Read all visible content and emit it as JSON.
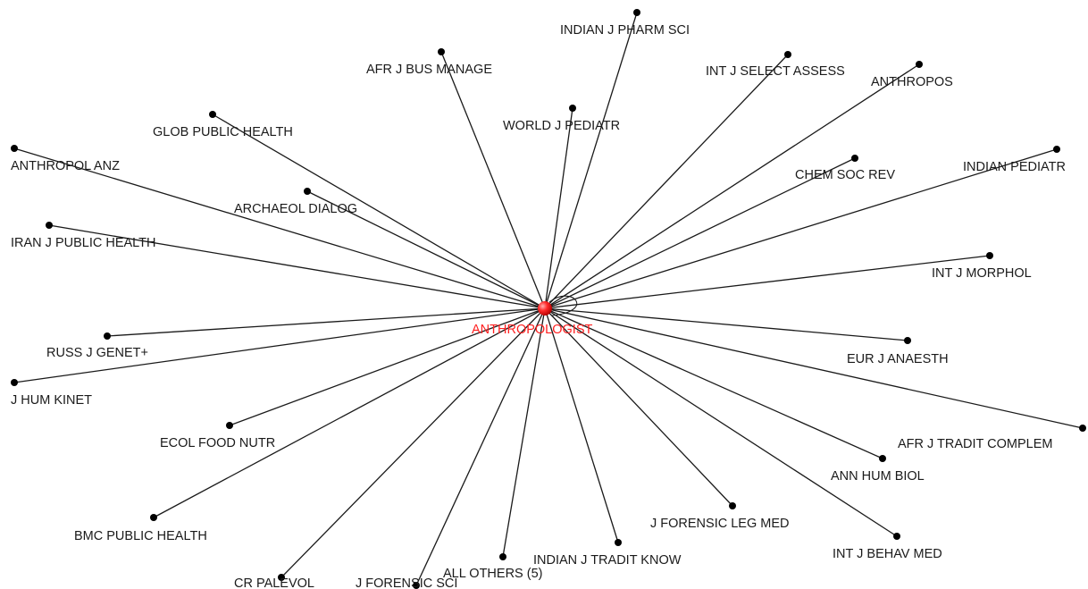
{
  "network": {
    "hub": {
      "label": "ANTHROPOLOGIST",
      "color": "#ff2020"
    },
    "edge_color": "#1a1a1a",
    "node_color": "#000000",
    "nodes": [
      {
        "label": "INDIAN J PHARM SCI"
      },
      {
        "label": "AFR J BUS MANAGE"
      },
      {
        "label": "INT J SELECT ASSESS"
      },
      {
        "label": "ANTHROPOS"
      },
      {
        "label": "WORLD J PEDIATR"
      },
      {
        "label": "GLOB PUBLIC HEALTH"
      },
      {
        "label": "ANTHROPOL ANZ"
      },
      {
        "label": "CHEM SOC REV"
      },
      {
        "label": "INDIAN PEDIATR"
      },
      {
        "label": "ARCHAEOL DIALOG"
      },
      {
        "label": "IRAN J PUBLIC HEALTH"
      },
      {
        "label": "INT J MORPHOL"
      },
      {
        "label": "RUSS J GENET+"
      },
      {
        "label": "EUR J ANAESTH"
      },
      {
        "label": "J HUM KINET"
      },
      {
        "label": "AFR J TRADIT COMPLEM"
      },
      {
        "label": "ECOL FOOD NUTR"
      },
      {
        "label": "ANN HUM BIOL"
      },
      {
        "label": "J FORENSIC LEG MED"
      },
      {
        "label": "BMC PUBLIC HEALTH"
      },
      {
        "label": "INT J BEHAV MED"
      },
      {
        "label": "INDIAN J TRADIT KNOW"
      },
      {
        "label": "ALL OTHERS (5)"
      },
      {
        "label": "CR PALEVOL"
      },
      {
        "label": "J FORENSIC SCI"
      }
    ]
  }
}
